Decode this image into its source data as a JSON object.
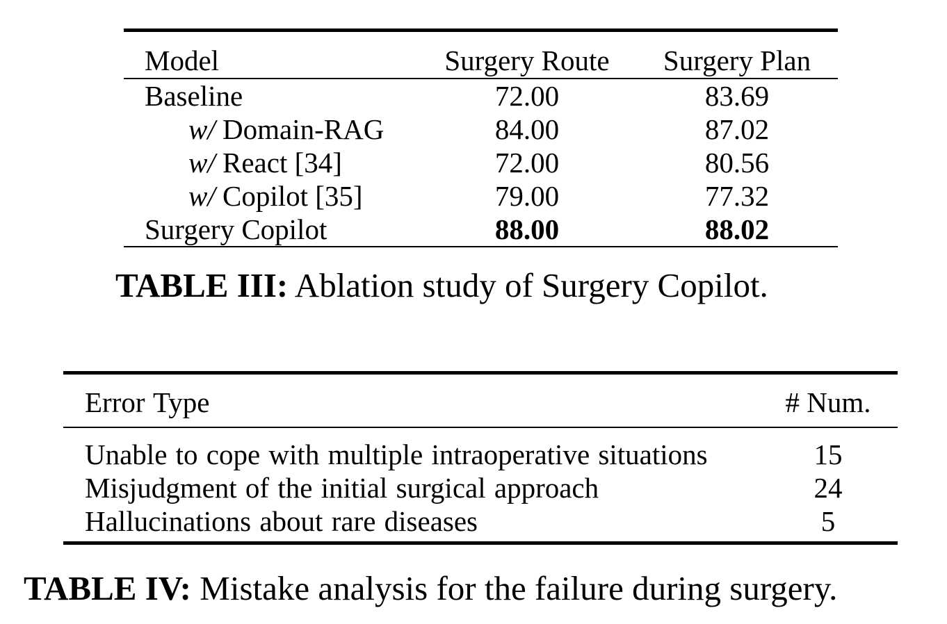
{
  "table3": {
    "headers": {
      "model": "Model",
      "route": "Surgery Route",
      "plan": "Surgery Plan"
    },
    "rows": [
      {
        "prefix": "",
        "model": "Baseline",
        "route": "72.00",
        "plan": "83.69",
        "bold": false
      },
      {
        "prefix": "w/",
        "model": " Domain-RAG",
        "route": "84.00",
        "plan": "87.02",
        "bold": false
      },
      {
        "prefix": "w/",
        "model": " React [34]",
        "route": "72.00",
        "plan": "80.56",
        "bold": false
      },
      {
        "prefix": "w/",
        "model": " Copilot [35]",
        "route": "79.00",
        "plan": "77.32",
        "bold": false
      },
      {
        "prefix": "",
        "model": "Surgery Copilot",
        "route": "88.00",
        "plan": "88.02",
        "bold": true
      }
    ],
    "caption_label": "TABLE III:",
    "caption_text": " Ablation study of Surgery Copilot."
  },
  "table4": {
    "headers": {
      "error_type": "Error Type",
      "num": "# Num."
    },
    "rows": [
      {
        "error": "Unable to cope with multiple intraoperative situations",
        "num": "15"
      },
      {
        "error": "Misjudgment of the initial surgical approach",
        "num": "24"
      },
      {
        "error": "Hallucinations about rare diseases",
        "num": "5"
      }
    ],
    "caption_label": "TABLE IV:",
    "caption_text": " Mistake analysis for the failure during surgery."
  }
}
